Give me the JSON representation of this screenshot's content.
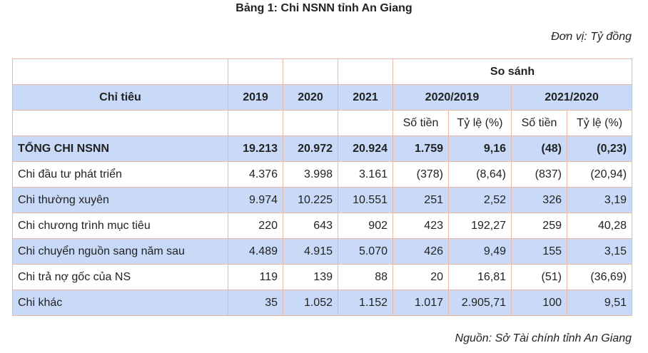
{
  "title": "Bảng 1: Chi NSNN tỉnh An Giang",
  "unit": "Đơn vị: Tỷ đồng",
  "source": "Nguồn: Sở Tài chính tỉnh An Giang",
  "header": {
    "compare": "So sánh",
    "indicator": "Chỉ tiêu",
    "y2019": "2019",
    "y2020": "2020",
    "y2021": "2021",
    "p1": "2020/2019",
    "p2": "2021/2020",
    "amount1": "Số tiền",
    "ratio1": "Tỷ lệ (%)",
    "amount2": "Số tiền",
    "ratio2": "Tỷ lệ (%)"
  },
  "rows": [
    {
      "label": "TỔNG CHI NSNN",
      "y2019": "19.213",
      "y2020": "20.972",
      "y2021": "20.924",
      "amt1": "1.759",
      "rat1": "9,16",
      "amt2": "(48)",
      "rat2": "(0,23)"
    },
    {
      "label": "Chi đầu tư phát triển",
      "y2019": "4.376",
      "y2020": "3.998",
      "y2021": "3.161",
      "amt1": "(378)",
      "rat1": "(8,64)",
      "amt2": "(837)",
      "rat2": "(20,94)"
    },
    {
      "label": "Chi thường xuyên",
      "y2019": "9.974",
      "y2020": "10.225",
      "y2021": "10.551",
      "amt1": "251",
      "rat1": "2,52",
      "amt2": "326",
      "rat2": "3,19"
    },
    {
      "label": "Chi chương trình mục tiêu",
      "y2019": "220",
      "y2020": "643",
      "y2021": "902",
      "amt1": "423",
      "rat1": "192,27",
      "amt2": "259",
      "rat2": "40,28"
    },
    {
      "label": "Chi chuyển nguồn sang năm sau",
      "y2019": "4.489",
      "y2020": "4.915",
      "y2021": "5.070",
      "amt1": "426",
      "rat1": "9,49",
      "amt2": "155",
      "rat2": "3,15"
    },
    {
      "label": "Chi trả nợ gốc của NS",
      "y2019": "119",
      "y2020": "139",
      "y2021": "88",
      "amt1": "20",
      "rat1": "16,81",
      "amt2": "(51)",
      "rat2": "(36,69)"
    },
    {
      "label": "Chi khác",
      "y2019": "35",
      "y2020": "1.052",
      "y2021": "1.152",
      "amt1": "1.017",
      "rat1": "2.905,71",
      "amt2": "100",
      "rat2": "9,51"
    }
  ],
  "colors": {
    "header_blue": "#c9daf8",
    "border": "#e9b9a8"
  }
}
